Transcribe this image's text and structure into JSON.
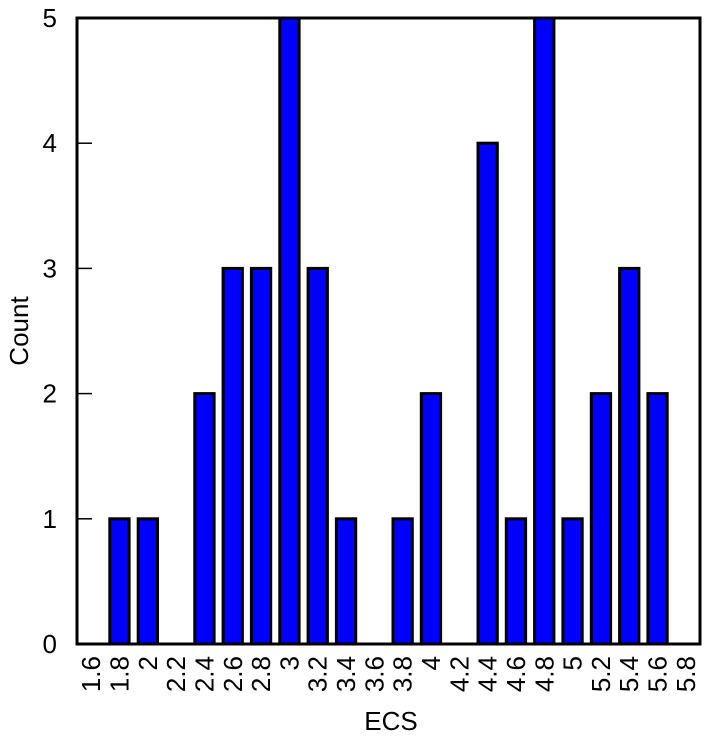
{
  "chart_data": {
    "type": "bar",
    "title": "",
    "xlabel": "ECS",
    "ylabel": "Count",
    "categories": [
      "1.6",
      "1.8",
      "2",
      "2.2",
      "2.4",
      "2.6",
      "2.8",
      "3",
      "3.2",
      "3.4",
      "3.6",
      "3.8",
      "4",
      "4.2",
      "4.4",
      "4.6",
      "4.8",
      "5",
      "5.2",
      "5.4",
      "5.6",
      "5.8"
    ],
    "values": [
      0,
      1,
      1,
      0,
      2,
      3,
      3,
      5,
      3,
      1,
      0,
      1,
      2,
      0,
      4,
      1,
      5,
      1,
      2,
      3,
      2,
      0
    ],
    "ylim": [
      0,
      5
    ],
    "yticks": [
      0,
      1,
      2,
      3,
      4,
      5
    ],
    "grid": false,
    "legend": null,
    "bar_color": "#0000ff",
    "bar_edge_color": "#000000"
  }
}
